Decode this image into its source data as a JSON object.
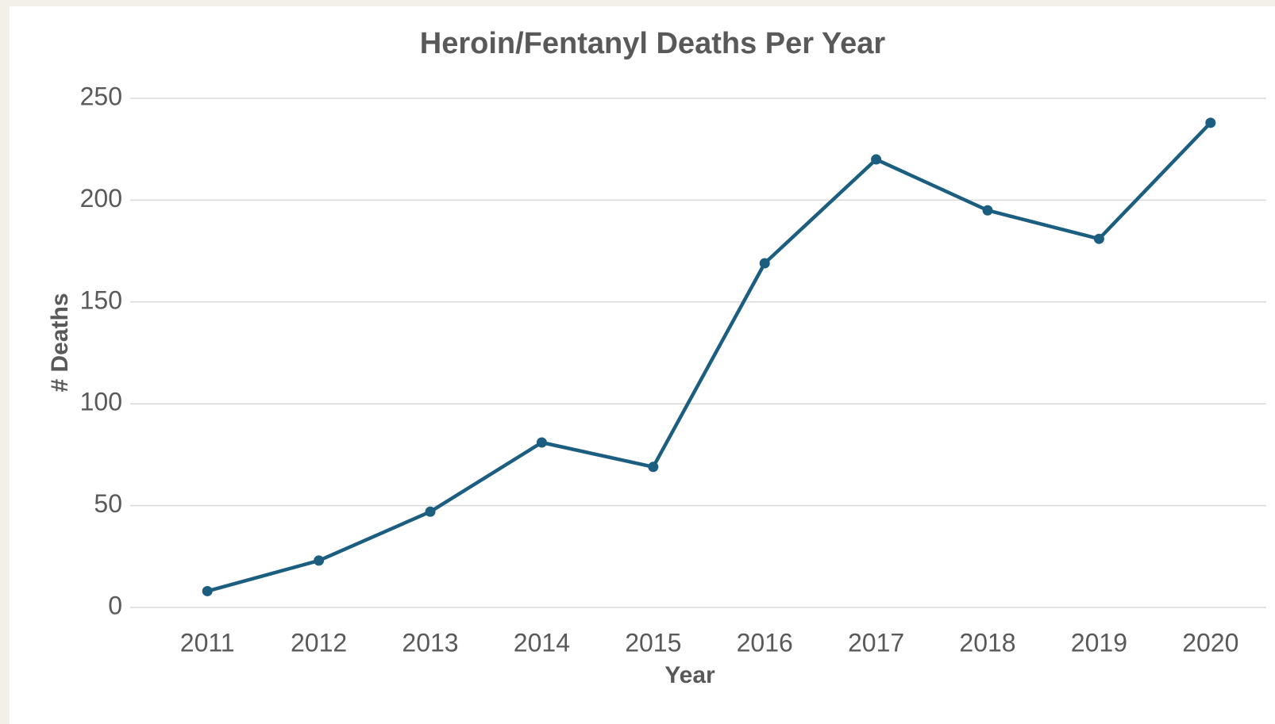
{
  "chart_data": {
    "type": "line",
    "title": "Heroin/Fentanyl Deaths Per Year",
    "x_label": "Year",
    "y_label": "# Deaths",
    "categories": [
      "2011",
      "2012",
      "2013",
      "2014",
      "2015",
      "2016",
      "2017",
      "2018",
      "2019",
      "2020"
    ],
    "series": [
      {
        "name": "Deaths",
        "color": "#1b5e80",
        "values": [
          8,
          23,
          47,
          81,
          69,
          169,
          220,
          195,
          181,
          238
        ]
      }
    ],
    "ylim": [
      0,
      250
    ],
    "yticks": [
      0,
      50,
      100,
      150,
      200,
      250
    ],
    "grid": true
  }
}
